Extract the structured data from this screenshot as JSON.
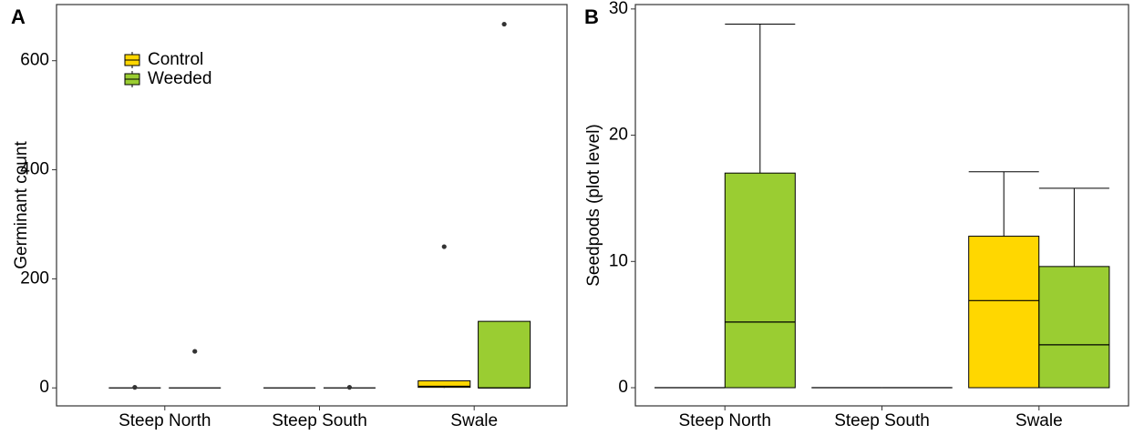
{
  "chart_data": [
    {
      "type": "box",
      "panel_label": "A",
      "y_label": "Germinant count",
      "categories": [
        "Steep North",
        "Steep South",
        "Swale"
      ],
      "ylim": [
        -33,
        703
      ],
      "yticks": [
        0,
        200,
        400,
        600
      ],
      "legend": "top-left",
      "whisker_caps": false,
      "series": [
        {
          "name": "Control",
          "color": "#FFD700",
          "boxes": [
            {
              "min": 0,
              "q1": 0,
              "median": 0,
              "q3": 0,
              "max": 0,
              "outliers": [
                1
              ]
            },
            {
              "min": 0,
              "q1": 0,
              "median": 0,
              "q3": 0,
              "max": 0,
              "outliers": []
            },
            {
              "min": 0,
              "q1": 1,
              "median": 3,
              "q3": 13,
              "max": 13,
              "outliers": [
                259
              ]
            }
          ]
        },
        {
          "name": "Weeded",
          "color": "#9ACD32",
          "boxes": [
            {
              "min": 0,
              "q1": 0,
              "median": 0,
              "q3": 0,
              "max": 0,
              "outliers": [
                67
              ]
            },
            {
              "min": 0,
              "q1": 0,
              "median": 0,
              "q3": 0,
              "max": 0,
              "outliers": [
                1
              ]
            },
            {
              "min": 0,
              "q1": 0,
              "median": 0,
              "q3": 122,
              "max": 122,
              "outliers": [
                667
              ]
            }
          ]
        }
      ]
    },
    {
      "type": "box",
      "panel_label": "B",
      "y_label": "Seedpods (plot level)",
      "categories": [
        "Steep North",
        "Steep South",
        "Swale"
      ],
      "ylim": [
        -1.44,
        30.35
      ],
      "yticks": [
        0,
        10,
        20,
        30
      ],
      "whisker_caps": true,
      "series": [
        {
          "color": "#FFD700",
          "boxes": [
            {
              "min": 0,
              "q1": 0,
              "median": 0,
              "q3": 0,
              "max": 0,
              "outliers": []
            },
            {
              "min": 0,
              "q1": 0,
              "median": 0,
              "q3": 0,
              "max": 0,
              "outliers": []
            },
            {
              "min": 0,
              "q1": 0,
              "median": 6.9,
              "q3": 12,
              "max": 17.1,
              "outliers": []
            }
          ]
        },
        {
          "color": "#9ACD32",
          "boxes": [
            {
              "min": 0,
              "q1": 0,
              "median": 5.2,
              "q3": 17,
              "max": 28.8,
              "outliers": []
            },
            {
              "min": 0,
              "q1": 0,
              "median": 0,
              "q3": 0,
              "max": 0,
              "outliers": []
            },
            {
              "min": 0,
              "q1": 0,
              "median": 3.4,
              "q3": 9.6,
              "max": 15.8,
              "outliers": []
            }
          ]
        }
      ]
    }
  ]
}
